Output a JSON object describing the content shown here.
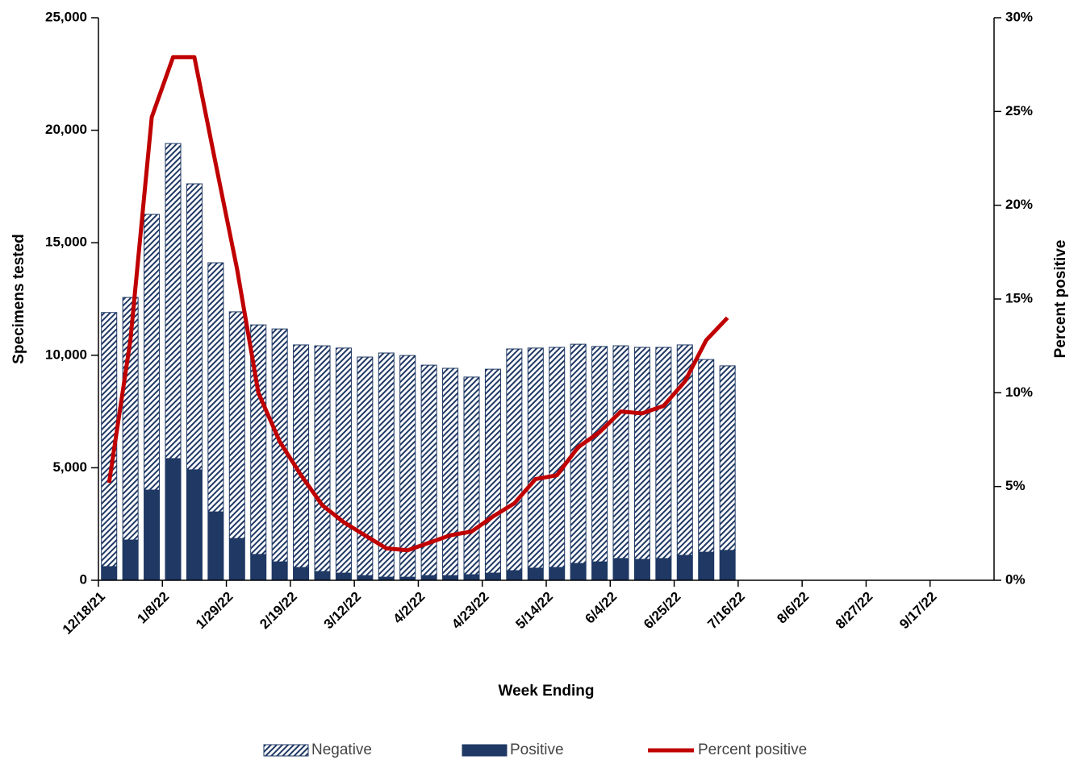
{
  "chart_data": {
    "type": "stacked-bar-line",
    "x_label": "Week Ending",
    "y_label": "Specimens tested",
    "y2_label": "Percent positive",
    "categories": [
      "12/18/21",
      null,
      null,
      "1/8/22",
      null,
      null,
      "1/29/22",
      null,
      null,
      "2/19/22",
      null,
      null,
      "3/12/22",
      null,
      null,
      "4/2/22",
      null,
      null,
      "4/23/22",
      null,
      null,
      "5/14/22",
      null,
      null,
      "6/4/22",
      null,
      null,
      "6/25/22",
      null,
      null,
      "7/16/22",
      null,
      null,
      "8/6/22",
      null,
      null,
      "8/27/22",
      null,
      null,
      "9/17/22",
      null,
      null
    ],
    "series": [
      {
        "name": "Negative",
        "color": "#1f3864",
        "pattern": "hatch",
        "values": [
          11290,
          10780,
          12250,
          14000,
          12710,
          11070,
          10070,
          10200,
          10350,
          9890,
          10030,
          10000,
          9710,
          9960,
          9850,
          9350,
          9210,
          8780,
          9060,
          9850,
          9780,
          9780,
          9740,
          9570,
          9450,
          9420,
          9380,
          9350,
          8560,
          8200,
          null,
          null,
          null,
          null,
          null,
          null,
          null,
          null,
          null,
          null,
          null,
          null
        ]
      },
      {
        "name": "Positive",
        "color": "#1f3864",
        "values": [
          610,
          1790,
          4010,
          5410,
          4910,
          3040,
          1860,
          1150,
          820,
          570,
          390,
          320,
          210,
          140,
          140,
          210,
          210,
          250,
          320,
          430,
          540,
          570,
          750,
          820,
          970,
          930,
          970,
          1110,
          1250,
          1330,
          null,
          null,
          null,
          null,
          null,
          null,
          null,
          null,
          null,
          null,
          null,
          null
        ]
      },
      {
        "name": "Percent positive",
        "color": "#c00000",
        "axis": "y2",
        "values": [
          5.2,
          12.8,
          24.7,
          27.9,
          27.9,
          22.2,
          16.6,
          10.0,
          7.4,
          5.6,
          4.0,
          3.1,
          2.4,
          1.7,
          1.6,
          2.0,
          2.4,
          2.6,
          3.4,
          4.1,
          5.4,
          5.6,
          7.1,
          7.9,
          9.0,
          8.9,
          9.3,
          10.6,
          12.8,
          14.0,
          null,
          null,
          null,
          null,
          null,
          null,
          null,
          null,
          null,
          null,
          null,
          null
        ]
      }
    ],
    "ylim": [
      0,
      25000
    ],
    "yticks": [
      0,
      {
        "value": 5000,
        "label": "5,000"
      },
      {
        "value": 10000,
        "label": "10,000"
      },
      {
        "value": 15000,
        "label": "15,000"
      },
      {
        "value": 20000,
        "label": "20,000"
      },
      {
        "value": 25000,
        "label": "25,000"
      }
    ],
    "y2lim": [
      0,
      30
    ],
    "y2ticks": [
      {
        "value": 0,
        "label": "0%"
      },
      {
        "value": 5,
        "label": "5%"
      },
      {
        "value": 10,
        "label": "10%"
      },
      {
        "value": 15,
        "label": "15%"
      },
      {
        "value": 20,
        "label": "20%"
      },
      {
        "value": 25,
        "label": "25%"
      },
      {
        "value": 30,
        "label": "30%"
      }
    ],
    "grid": false,
    "legend": "bottom"
  }
}
